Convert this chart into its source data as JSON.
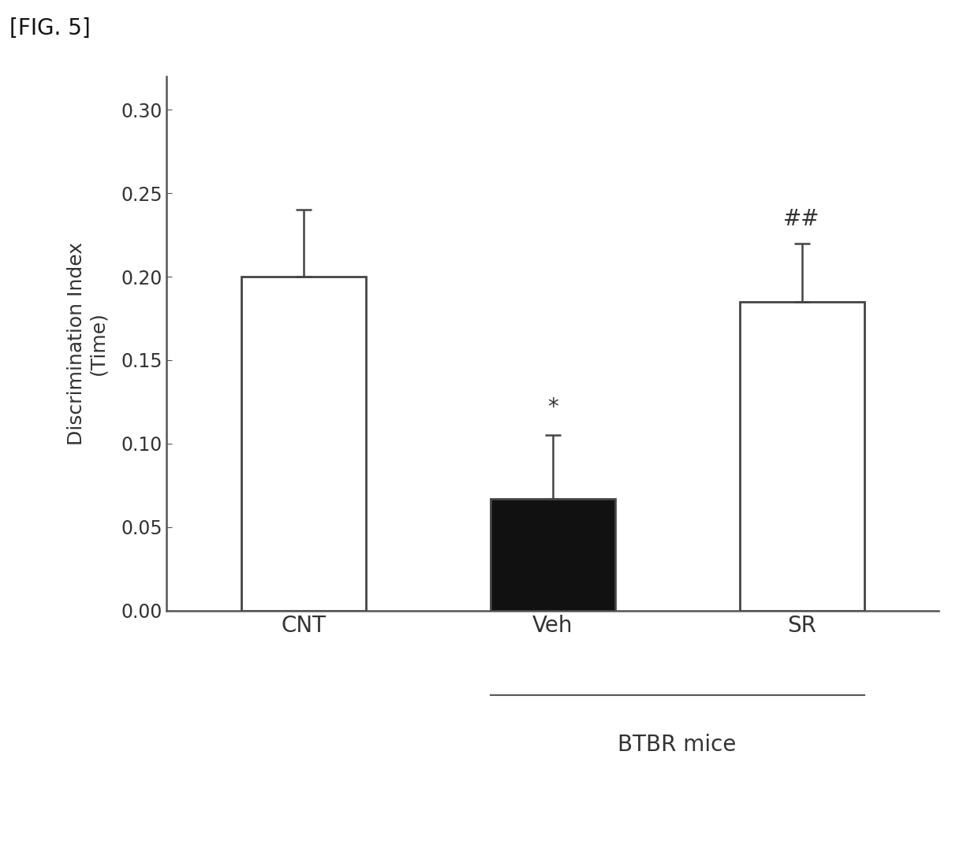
{
  "categories": [
    "CNT",
    "Veh",
    "SR"
  ],
  "values": [
    0.2,
    0.067,
    0.185
  ],
  "errors": [
    0.04,
    0.038,
    0.035
  ],
  "bar_colors": [
    "#ffffff",
    "#111111",
    "#ffffff"
  ],
  "bar_edgecolors": [
    "#444444",
    "#444444",
    "#444444"
  ],
  "ylabel_line1": "Discrimination Index",
  "ylabel_line2": "(Time)",
  "ylim": [
    0.0,
    0.32
  ],
  "yticks": [
    0.0,
    0.05,
    0.1,
    0.15,
    0.2,
    0.25,
    0.3
  ],
  "fig_label": "[FIG. 5]",
  "btbr_label": "BTBR mice",
  "ann_veh_text": "*",
  "ann_sr_text": "##",
  "background_color": "#ffffff",
  "bar_width": 0.5,
  "tick_color": "#555555",
  "spine_color": "#555555"
}
